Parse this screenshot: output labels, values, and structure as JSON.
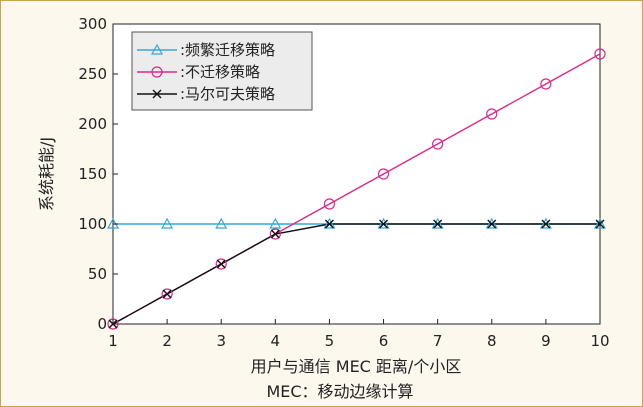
{
  "chart_data": {
    "type": "line",
    "xlabel": "用户与通信 MEC 距离/个小区",
    "ylabel": "系统耗能/J",
    "caption": "MEC：移动边缘计算",
    "x": [
      1,
      2,
      3,
      4,
      5,
      6,
      7,
      8,
      9,
      10
    ],
    "xlim": [
      1,
      10
    ],
    "ylim": [
      0,
      300
    ],
    "xticks": [
      1,
      2,
      3,
      4,
      5,
      6,
      7,
      8,
      9,
      10
    ],
    "yticks": [
      0,
      50,
      100,
      150,
      200,
      250,
      300
    ],
    "grid": false,
    "legend_position": "top-left",
    "series": [
      {
        "name": "频繁迁移策略",
        "legend_label": ":频繁迁移策略",
        "color": "#35a8d8",
        "marker": "triangle",
        "values": [
          100,
          100,
          100,
          100,
          100,
          100,
          100,
          100,
          100,
          100
        ]
      },
      {
        "name": "不迁移策略",
        "legend_label": ":不迁移策略",
        "color": "#d92a8c",
        "marker": "circle",
        "values": [
          0,
          30,
          60,
          90,
          120,
          150,
          180,
          210,
          240,
          270
        ]
      },
      {
        "name": "马尔可夫策略",
        "legend_label": ":马尔可夫策略",
        "color": "#111111",
        "marker": "x",
        "values": [
          0,
          30,
          60,
          90,
          100,
          100,
          100,
          100,
          100,
          100
        ]
      }
    ]
  }
}
